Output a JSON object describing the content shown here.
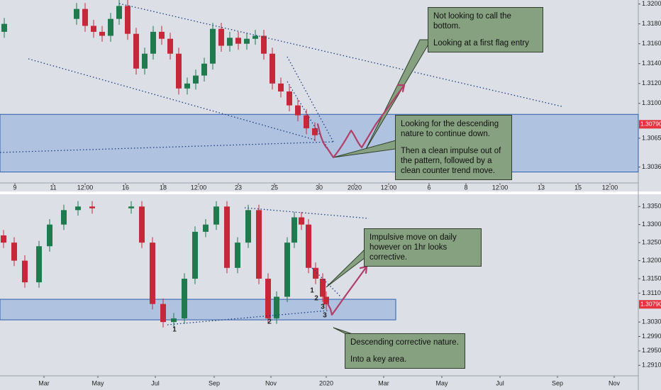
{
  "chart_data": [
    {
      "type": "candlestick",
      "up_color": "#1f7a4d",
      "down_color": "#c62839",
      "xlim": [
        0,
        90
      ],
      "ylim": [
        1.302,
        1.3204
      ],
      "xticks": [
        {
          "value": 2.1,
          "label": "9"
        },
        {
          "value": 7.5,
          "label": "11"
        },
        {
          "value": 12,
          "label": "12:00"
        },
        {
          "value": 17.7,
          "label": "16"
        },
        {
          "value": 23,
          "label": "18"
        },
        {
          "value": 28,
          "label": "12:00"
        },
        {
          "value": 33.6,
          "label": "23"
        },
        {
          "value": 38.7,
          "label": "25"
        },
        {
          "value": 45,
          "label": "30"
        },
        {
          "value": 50,
          "label": "2020"
        },
        {
          "value": 54.8,
          "label": "12:00"
        },
        {
          "value": 60.5,
          "label": "6"
        },
        {
          "value": 65.7,
          "label": "8"
        },
        {
          "value": 70.5,
          "label": "12:00"
        },
        {
          "value": 76.3,
          "label": "13"
        },
        {
          "value": 81.5,
          "label": "15"
        },
        {
          "value": 86,
          "label": "12:00"
        }
      ],
      "yticks": [
        {
          "value": 1.32,
          "label": "1.32000"
        },
        {
          "value": 1.318,
          "label": "1.31800"
        },
        {
          "value": 1.316,
          "label": "1.31600"
        },
        {
          "value": 1.314,
          "label": "1.31400"
        },
        {
          "value": 1.312,
          "label": "1.31200"
        },
        {
          "value": 1.31,
          "label": "1.31000"
        },
        {
          "value": 1.3065,
          "label": "1.30650"
        },
        {
          "value": 1.3036,
          "label": "1.30360"
        }
      ],
      "last_price": {
        "value": 1.3079,
        "label": "1.30790"
      },
      "zone": [
        1.3031,
        1.3089
      ],
      "zone_x": [
        0,
        90
      ],
      "x": [
        0.6,
        10.8,
        12.0,
        13.2,
        14.4,
        15.6,
        16.8,
        18.0,
        19.2,
        20.4,
        21.6,
        22.8,
        24.0,
        25.2,
        26.4,
        27.6,
        28.8,
        30.0,
        31.2,
        32.4,
        33.6,
        34.8,
        36.0,
        37.2,
        38.4,
        39.6,
        40.8,
        42.0,
        43.2,
        44.4
      ],
      "open": [
        1.3172,
        1.3185,
        1.3195,
        1.3178,
        1.3172,
        1.3168,
        1.3185,
        1.3198,
        1.317,
        1.3135,
        1.315,
        1.3172,
        1.3165,
        1.315,
        1.3115,
        1.312,
        1.3128,
        1.314,
        1.3175,
        1.3158,
        1.3166,
        1.316,
        1.3165,
        1.3168,
        1.315,
        1.312,
        1.3112,
        1.3098,
        1.3088,
        1.3075
      ],
      "high": [
        1.3186,
        1.3201,
        1.3201,
        1.3184,
        1.3178,
        1.3191,
        1.3204,
        1.3204,
        1.3176,
        1.3156,
        1.3178,
        1.3178,
        1.3171,
        1.3156,
        1.3126,
        1.3134,
        1.3146,
        1.3181,
        1.3181,
        1.3172,
        1.3172,
        1.3171,
        1.3174,
        1.3174,
        1.3156,
        1.3126,
        1.3118,
        1.3104,
        1.3094,
        1.3081
      ],
      "low": [
        1.3166,
        1.3179,
        1.3172,
        1.3166,
        1.3162,
        1.3162,
        1.3179,
        1.3164,
        1.3129,
        1.3129,
        1.3144,
        1.3159,
        1.3144,
        1.3109,
        1.3109,
        1.3114,
        1.3122,
        1.3134,
        1.3152,
        1.3152,
        1.3154,
        1.3154,
        1.3159,
        1.3144,
        1.3114,
        1.3106,
        1.3092,
        1.3082,
        1.3069,
        1.3062
      ],
      "close": [
        1.318,
        1.3195,
        1.3178,
        1.3172,
        1.3168,
        1.3185,
        1.3198,
        1.317,
        1.3135,
        1.315,
        1.3172,
        1.3165,
        1.315,
        1.3115,
        1.312,
        1.3128,
        1.314,
        1.3175,
        1.3158,
        1.3166,
        1.316,
        1.3165,
        1.3168,
        1.315,
        1.312,
        1.3112,
        1.3098,
        1.3088,
        1.3075,
        1.3068
      ],
      "annotations": [
        [
          "Not looking to call the bottom.",
          "Looking at a first flag entry"
        ],
        [
          "Looking for the descending nature to continue down.",
          "Then a clean impulse out of the pattern, followed by a clean counter trend move."
        ]
      ],
      "wave_labels": []
    },
    {
      "type": "candlestick",
      "up_color": "#1f7a4d",
      "down_color": "#c62839",
      "xlim": [
        0,
        90
      ],
      "ylim": [
        1.2881,
        1.3376
      ],
      "xticks": [
        {
          "value": 6.2,
          "label": "Mar"
        },
        {
          "value": 13.8,
          "label": "May"
        },
        {
          "value": 21.9,
          "label": "Jul"
        },
        {
          "value": 30.2,
          "label": "Sep"
        },
        {
          "value": 38.2,
          "label": "Nov"
        },
        {
          "value": 46,
          "label": "2020"
        },
        {
          "value": 54.1,
          "label": "Mar"
        },
        {
          "value": 62.3,
          "label": "May"
        },
        {
          "value": 70.5,
          "label": "Jul"
        },
        {
          "value": 78.6,
          "label": "Sep"
        },
        {
          "value": 86.6,
          "label": "Nov"
        }
      ],
      "yticks": [
        {
          "value": 1.335,
          "label": "1.33500"
        },
        {
          "value": 1.33,
          "label": "1.33000"
        },
        {
          "value": 1.325,
          "label": "1.32500"
        },
        {
          "value": 1.32,
          "label": "1.32000"
        },
        {
          "value": 1.315,
          "label": "1.31500"
        },
        {
          "value": 1.311,
          "label": "1.31100"
        },
        {
          "value": 1.303,
          "label": "1.30300"
        },
        {
          "value": 1.299,
          "label": "1.29900"
        },
        {
          "value": 1.295,
          "label": "1.29500"
        },
        {
          "value": 1.291,
          "label": "1.29100"
        }
      ],
      "last_price": {
        "value": 1.3079,
        "label": "1.30790"
      },
      "zone": [
        1.3036,
        1.3093
      ],
      "zone_x": [
        0,
        55.8
      ],
      "x": [
        0.5,
        2.0,
        3.5,
        5.5,
        7.0,
        9.0,
        11.0,
        13.0,
        18.5,
        20.0,
        21.5,
        23.0,
        24.5,
        26.0,
        27.5,
        29.0,
        30.5,
        32.0,
        33.5,
        35.0,
        36.5,
        37.8,
        39.0,
        40.5,
        41.5,
        42.5,
        43.5,
        44.5,
        45.5,
        46.0
      ],
      "open": [
        1.327,
        1.325,
        1.32,
        1.314,
        1.324,
        1.33,
        1.334,
        1.335,
        1.3345,
        1.335,
        1.325,
        1.308,
        1.303,
        1.304,
        1.315,
        1.328,
        1.33,
        1.335,
        1.318,
        1.325,
        1.334,
        1.315,
        1.304,
        1.31,
        1.325,
        1.332,
        1.33,
        1.318,
        1.315,
        1.31
      ],
      "high": [
        1.3285,
        1.3265,
        1.3215,
        1.3255,
        1.3315,
        1.3355,
        1.3365,
        1.3365,
        1.3365,
        1.3365,
        1.3265,
        1.3095,
        1.3055,
        1.3165,
        1.3295,
        1.3315,
        1.3365,
        1.3365,
        1.3265,
        1.3355,
        1.3355,
        1.3165,
        1.3115,
        1.3265,
        1.3335,
        1.3335,
        1.3315,
        1.3195,
        1.3165,
        1.3115
      ],
      "low": [
        1.3235,
        1.3185,
        1.3125,
        1.3125,
        1.3225,
        1.3285,
        1.3325,
        1.333,
        1.333,
        1.3235,
        1.3065,
        1.3015,
        1.3015,
        1.3025,
        1.3135,
        1.3265,
        1.3285,
        1.3165,
        1.3165,
        1.3235,
        1.3135,
        1.3025,
        1.3025,
        1.3085,
        1.3235,
        1.3285,
        1.3165,
        1.3135,
        1.3085,
        1.3064
      ],
      "close": [
        1.325,
        1.32,
        1.314,
        1.324,
        1.33,
        1.334,
        1.335,
        1.3345,
        1.335,
        1.325,
        1.308,
        1.303,
        1.304,
        1.315,
        1.328,
        1.33,
        1.335,
        1.318,
        1.325,
        1.334,
        1.315,
        1.304,
        1.31,
        1.325,
        1.332,
        1.33,
        1.318,
        1.315,
        1.31,
        1.3079
      ],
      "annotations": [
        [
          "Impulsive move on daily however on 1hr looks corrective."
        ],
        [
          "Descending corrective nature.",
          "Into a key area."
        ]
      ],
      "wave_labels": [
        "1",
        "2",
        "1",
        "2",
        "3",
        "3"
      ]
    }
  ]
}
